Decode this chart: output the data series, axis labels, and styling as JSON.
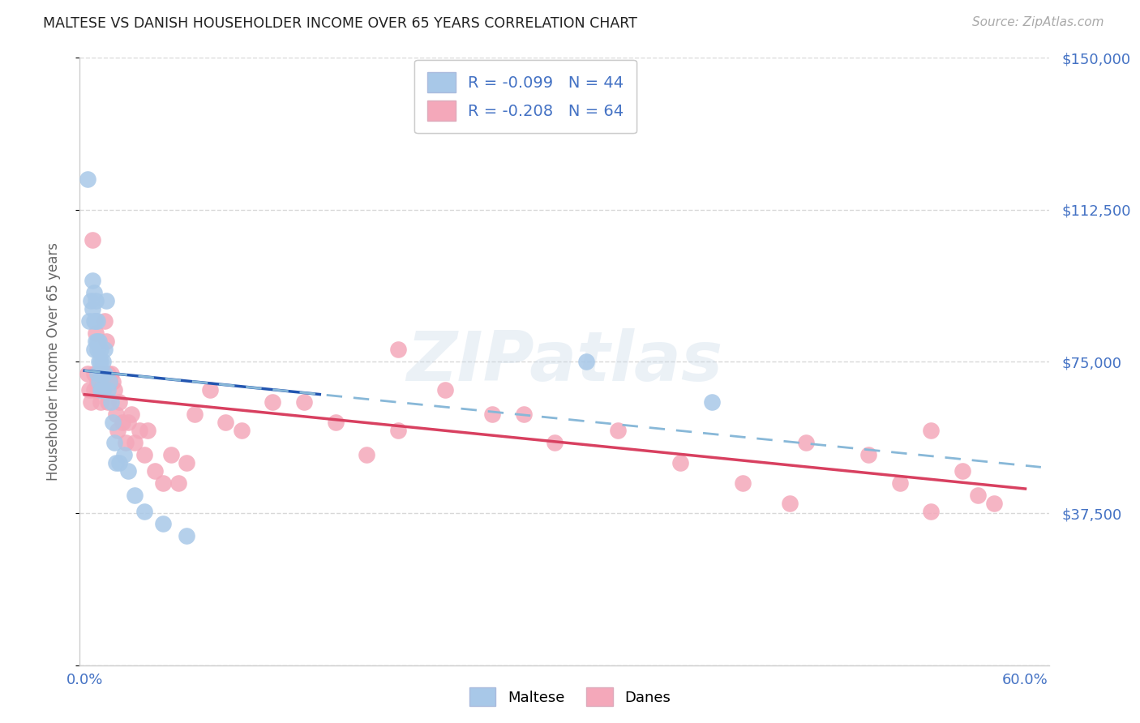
{
  "title": "MALTESE VS DANISH HOUSEHOLDER INCOME OVER 65 YEARS CORRELATION CHART",
  "source": "Source: ZipAtlas.com",
  "ylabel": "Householder Income Over 65 years",
  "xlim": [
    -0.003,
    0.615
  ],
  "ylim": [
    0,
    150000
  ],
  "yticks": [
    0,
    37500,
    75000,
    112500,
    150000
  ],
  "ytick_labels": [
    "",
    "$37,500",
    "$75,000",
    "$112,500",
    "$150,000"
  ],
  "xtick_positions": [
    0.0,
    0.1,
    0.2,
    0.3,
    0.4,
    0.5,
    0.6
  ],
  "xtick_labels": [
    "0.0%",
    "",
    "",
    "",
    "",
    "",
    "60.0%"
  ],
  "maltese_R": -0.099,
  "maltese_N": 44,
  "danes_R": -0.208,
  "danes_N": 64,
  "maltese_color": "#a8c8e8",
  "danes_color": "#f4a8ba",
  "maltese_line_color": "#2255b0",
  "danes_line_color": "#d84060",
  "maltese_dashed_color": "#88b8d8",
  "background_color": "#ffffff",
  "grid_color": "#d8d8d8",
  "title_color": "#222222",
  "right_label_color": "#4472c4",
  "watermark_text": "ZIPatlas",
  "maltese_x": [
    0.002,
    0.003,
    0.004,
    0.005,
    0.005,
    0.006,
    0.006,
    0.006,
    0.007,
    0.007,
    0.007,
    0.008,
    0.008,
    0.008,
    0.008,
    0.009,
    0.009,
    0.009,
    0.01,
    0.01,
    0.01,
    0.01,
    0.011,
    0.011,
    0.012,
    0.012,
    0.013,
    0.013,
    0.014,
    0.015,
    0.016,
    0.017,
    0.018,
    0.019,
    0.02,
    0.022,
    0.025,
    0.028,
    0.032,
    0.038,
    0.05,
    0.065,
    0.32,
    0.4
  ],
  "maltese_y": [
    120000,
    85000,
    90000,
    88000,
    95000,
    92000,
    85000,
    78000,
    85000,
    90000,
    80000,
    80000,
    85000,
    78000,
    72000,
    80000,
    75000,
    70000,
    78000,
    72000,
    68000,
    75000,
    72000,
    68000,
    75000,
    68000,
    78000,
    72000,
    90000,
    68000,
    70000,
    65000,
    60000,
    55000,
    50000,
    50000,
    52000,
    48000,
    42000,
    38000,
    35000,
    32000,
    75000,
    65000
  ],
  "danes_x": [
    0.002,
    0.003,
    0.004,
    0.005,
    0.006,
    0.006,
    0.007,
    0.008,
    0.008,
    0.009,
    0.01,
    0.01,
    0.011,
    0.012,
    0.013,
    0.014,
    0.015,
    0.015,
    0.016,
    0.017,
    0.018,
    0.019,
    0.02,
    0.021,
    0.022,
    0.024,
    0.026,
    0.028,
    0.03,
    0.032,
    0.035,
    0.038,
    0.04,
    0.045,
    0.05,
    0.055,
    0.06,
    0.065,
    0.07,
    0.08,
    0.09,
    0.1,
    0.12,
    0.14,
    0.16,
    0.18,
    0.2,
    0.23,
    0.26,
    0.3,
    0.34,
    0.38,
    0.42,
    0.46,
    0.5,
    0.52,
    0.54,
    0.56,
    0.57,
    0.58,
    0.2,
    0.28,
    0.45,
    0.54
  ],
  "danes_y": [
    72000,
    68000,
    65000,
    105000,
    68000,
    72000,
    82000,
    70000,
    68000,
    70000,
    72000,
    65000,
    70000,
    68000,
    85000,
    80000,
    65000,
    72000,
    70000,
    72000,
    70000,
    68000,
    62000,
    58000,
    65000,
    60000,
    55000,
    60000,
    62000,
    55000,
    58000,
    52000,
    58000,
    48000,
    45000,
    52000,
    45000,
    50000,
    62000,
    68000,
    60000,
    58000,
    65000,
    65000,
    60000,
    52000,
    58000,
    68000,
    62000,
    55000,
    58000,
    50000,
    45000,
    55000,
    52000,
    45000,
    58000,
    48000,
    42000,
    40000,
    78000,
    62000,
    40000,
    38000
  ]
}
